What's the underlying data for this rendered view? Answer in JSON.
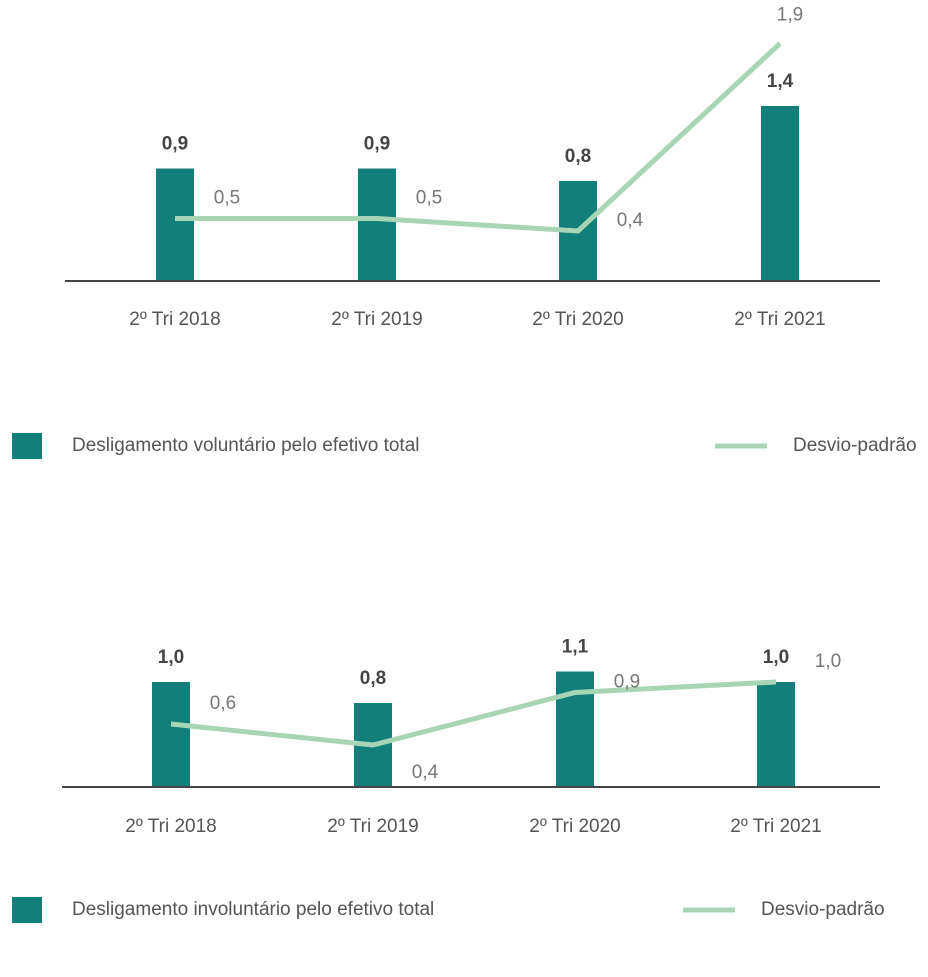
{
  "chart_data": [
    {
      "type": "bar-line",
      "categories": [
        "2º Tri 2018",
        "2º Tri 2019",
        "2º Tri 2020",
        "2º Tri 2021"
      ],
      "series": [
        {
          "name": "Desligamento voluntário pelo efetivo total",
          "type": "bar",
          "color": "#137f7a",
          "values": [
            0.9,
            0.9,
            0.8,
            1.4
          ],
          "value_labels": [
            "0,9",
            "0,9",
            "0,8",
            "1,4"
          ]
        },
        {
          "name": "Desvio-padrão",
          "type": "line",
          "color": "#a8d5b5",
          "values": [
            0.5,
            0.5,
            0.4,
            1.9
          ],
          "value_labels": [
            "0,5",
            "0,5",
            "0,4",
            "1,9"
          ]
        }
      ]
    },
    {
      "type": "bar-line",
      "categories": [
        "2º Tri 2018",
        "2º Tri 2019",
        "2º Tri 2020",
        "2º Tri 2021"
      ],
      "series": [
        {
          "name": "Desligamento involuntário pelo efetivo total",
          "type": "bar",
          "color": "#137f7a",
          "values": [
            1.0,
            0.8,
            1.1,
            1.0
          ],
          "value_labels": [
            "1,0",
            "0,8",
            "1,1",
            "1,0"
          ]
        },
        {
          "name": "Desvio-padrão",
          "type": "line",
          "color": "#a8d5b5",
          "values": [
            0.6,
            0.4,
            0.9,
            1.0
          ],
          "value_labels": [
            "0,6",
            "0,4",
            "0,9",
            "1,0"
          ]
        }
      ]
    }
  ]
}
